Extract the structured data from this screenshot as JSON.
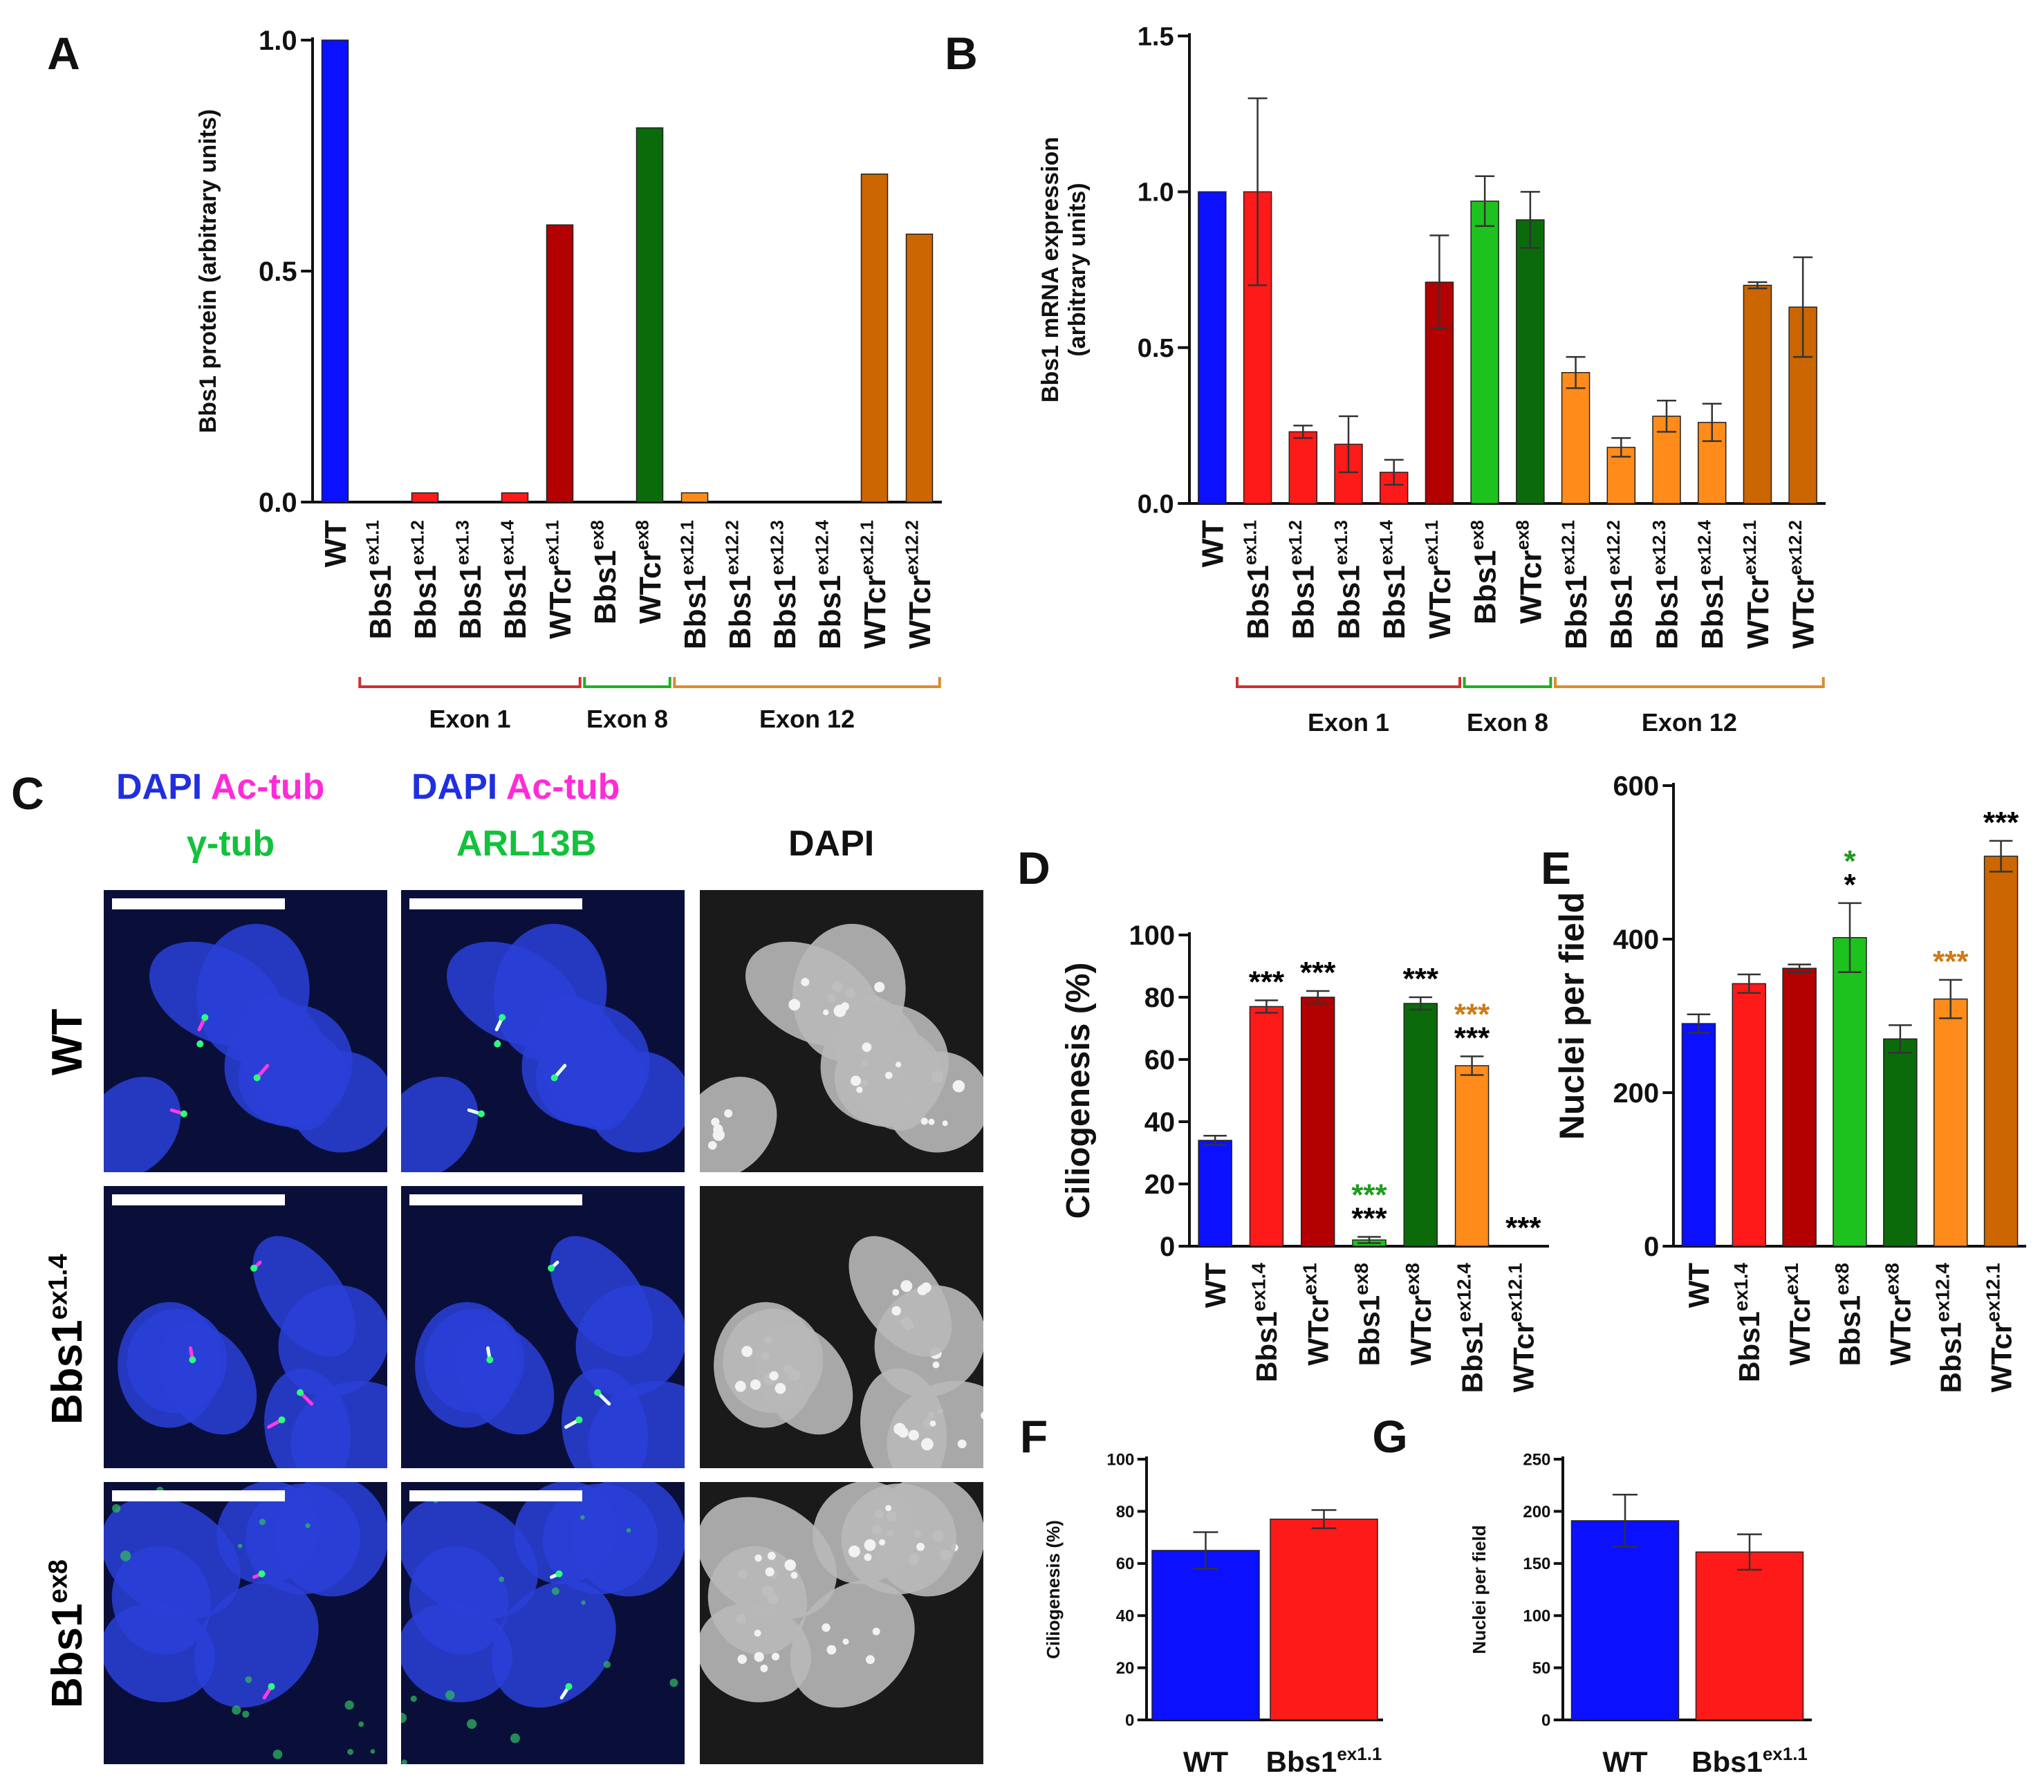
{
  "panel_letters": {
    "a": "A",
    "b": "B",
    "c": "C",
    "d": "D",
    "e": "E",
    "f": "F",
    "g": "G"
  },
  "colors": {
    "blue": "#0b10ff",
    "red": "#ff1a1a",
    "dark_red": "#b30000",
    "green": "#1ec21e",
    "dark_green": "#0b6b0b",
    "orange": "#ff8c1a",
    "dark_orange": "#cc6600",
    "star_black": "#000000",
    "star_green": "#1e9c1e",
    "star_orange": "#cc7a1a"
  },
  "chart_data": [
    {
      "id": "A",
      "type": "bar",
      "ylabel": "Bbs1 protein (arbitrary units)",
      "ylim": [
        0,
        1.0
      ],
      "yticks": [
        "0.0",
        "0.5",
        "1.0"
      ],
      "categories": [
        {
          "base": "WT",
          "sup": ""
        },
        {
          "base": "Bbs1",
          "sup": "ex1.1"
        },
        {
          "base": "Bbs1",
          "sup": "ex1.2"
        },
        {
          "base": "Bbs1",
          "sup": "ex1.3"
        },
        {
          "base": "Bbs1",
          "sup": "ex1.4"
        },
        {
          "base": "WTcr",
          "sup": "ex1.1"
        },
        {
          "base": "Bbs1",
          "sup": "ex8"
        },
        {
          "base": "WTcr",
          "sup": "ex8"
        },
        {
          "base": "Bbs1",
          "sup": "ex12.1"
        },
        {
          "base": "Bbs1",
          "sup": "ex12.2"
        },
        {
          "base": "Bbs1",
          "sup": "ex12.3"
        },
        {
          "base": "Bbs1",
          "sup": "ex12.4"
        },
        {
          "base": "WTcr",
          "sup": "ex12.1"
        },
        {
          "base": "WTcr",
          "sup": "ex12.2"
        }
      ],
      "values": [
        1.0,
        0.0,
        0.02,
        0.0,
        0.02,
        0.6,
        0.0,
        0.81,
        0.02,
        0.0,
        0.0,
        0.0,
        0.71,
        0.58
      ],
      "colors": [
        "blue",
        "red",
        "red",
        "red",
        "red",
        "dark_red",
        "green",
        "dark_green",
        "orange",
        "orange",
        "orange",
        "orange",
        "dark_orange",
        "dark_orange"
      ],
      "groups": [
        {
          "label": "Exon 1",
          "from": 1,
          "to": 5,
          "color": "#d03030"
        },
        {
          "label": "Exon 8",
          "from": 6,
          "to": 7,
          "color": "#20b020"
        },
        {
          "label": "Exon 12",
          "from": 8,
          "to": 13,
          "color": "#e08a2a"
        }
      ]
    },
    {
      "id": "B",
      "type": "bar",
      "ylabel": [
        "Bbs1 mRNA expression",
        "(arbitrary units)"
      ],
      "ylim": [
        0,
        1.5
      ],
      "yticks": [
        "0.0",
        "0.5",
        "1.0",
        "1.5"
      ],
      "categories": [
        {
          "base": "WT",
          "sup": ""
        },
        {
          "base": "Bbs1",
          "sup": "ex1.1"
        },
        {
          "base": "Bbs1",
          "sup": "ex1.2"
        },
        {
          "base": "Bbs1",
          "sup": "ex1.3"
        },
        {
          "base": "Bbs1",
          "sup": "ex1.4"
        },
        {
          "base": "WTcr",
          "sup": "ex1.1"
        },
        {
          "base": "Bbs1",
          "sup": "ex8"
        },
        {
          "base": "WTcr",
          "sup": "ex8"
        },
        {
          "base": "Bbs1",
          "sup": "ex12.1"
        },
        {
          "base": "Bbs1",
          "sup": "ex12.2"
        },
        {
          "base": "Bbs1",
          "sup": "ex12.3"
        },
        {
          "base": "Bbs1",
          "sup": "ex12.4"
        },
        {
          "base": "WTcr",
          "sup": "ex12.1"
        },
        {
          "base": "WTcr",
          "sup": "ex12.2"
        }
      ],
      "values": [
        1.0,
        1.0,
        0.23,
        0.19,
        0.1,
        0.71,
        0.97,
        0.91,
        0.42,
        0.18,
        0.28,
        0.26,
        0.7,
        0.63
      ],
      "errors": [
        0,
        0.3,
        0.02,
        0.09,
        0.04,
        0.15,
        0.08,
        0.09,
        0.05,
        0.03,
        0.05,
        0.06,
        0.01,
        0.16
      ],
      "colors": [
        "blue",
        "red",
        "red",
        "red",
        "red",
        "dark_red",
        "green",
        "dark_green",
        "orange",
        "orange",
        "orange",
        "orange",
        "dark_orange",
        "dark_orange"
      ],
      "groups": [
        {
          "label": "Exon 1",
          "from": 1,
          "to": 5,
          "color": "#d03030"
        },
        {
          "label": "Exon 8",
          "from": 6,
          "to": 7,
          "color": "#20b020"
        },
        {
          "label": "Exon 12",
          "from": 8,
          "to": 13,
          "color": "#e08a2a"
        }
      ]
    },
    {
      "id": "D",
      "type": "bar",
      "ylabel": "Ciliogenesis (%)",
      "ylim": [
        0,
        100
      ],
      "yticks": [
        "0",
        "20",
        "40",
        "60",
        "80",
        "100"
      ],
      "categories": [
        {
          "base": "WT",
          "sup": ""
        },
        {
          "base": "Bbs1",
          "sup": "ex1.4"
        },
        {
          "base": "WTcr",
          "sup": "ex1"
        },
        {
          "base": "Bbs1",
          "sup": "ex8"
        },
        {
          "base": "WTcr",
          "sup": "ex8"
        },
        {
          "base": "Bbs1",
          "sup": "ex12.4"
        },
        {
          "base": "WTcr",
          "sup": "ex12.1"
        }
      ],
      "values": [
        34,
        77,
        80,
        2,
        78,
        58,
        0
      ],
      "errors": [
        1.5,
        2,
        2,
        1,
        2,
        3,
        0
      ],
      "colors": [
        "blue",
        "red",
        "dark_red",
        "green",
        "dark_green",
        "orange",
        "dark_orange"
      ],
      "significance": [
        [],
        [
          {
            "text": "***",
            "color": "star_black"
          }
        ],
        [
          {
            "text": "***",
            "color": "star_black"
          }
        ],
        [
          {
            "text": "***",
            "color": "star_green"
          },
          {
            "text": "***",
            "color": "star_black"
          }
        ],
        [
          {
            "text": "***",
            "color": "star_black"
          }
        ],
        [
          {
            "text": "***",
            "color": "star_orange"
          },
          {
            "text": "***",
            "color": "star_black"
          }
        ],
        [
          {
            "text": "***",
            "color": "star_black"
          }
        ]
      ]
    },
    {
      "id": "E",
      "type": "bar",
      "ylabel": "Nuclei per field",
      "ylim": [
        0,
        600
      ],
      "yticks": [
        "0",
        "200",
        "400",
        "600"
      ],
      "categories": [
        {
          "base": "WT",
          "sup": ""
        },
        {
          "base": "Bbs1",
          "sup": "ex1.4"
        },
        {
          "base": "WTcr",
          "sup": "ex1"
        },
        {
          "base": "Bbs1",
          "sup": "ex8"
        },
        {
          "base": "WTcr",
          "sup": "ex8"
        },
        {
          "base": "Bbs1",
          "sup": "ex12.4"
        },
        {
          "base": "WTcr",
          "sup": "ex12.1"
        }
      ],
      "values": [
        290,
        342,
        362,
        402,
        270,
        322,
        508
      ],
      "errors": [
        12,
        12,
        5,
        45,
        18,
        25,
        20
      ],
      "colors": [
        "blue",
        "red",
        "dark_red",
        "green",
        "dark_green",
        "orange",
        "dark_orange"
      ],
      "significance": [
        [],
        [],
        [],
        [
          {
            "text": "*",
            "color": "star_green"
          },
          {
            "text": "*",
            "color": "star_black"
          }
        ],
        [],
        [
          {
            "text": "***",
            "color": "star_orange"
          }
        ],
        [
          {
            "text": "***",
            "color": "star_black"
          }
        ]
      ]
    },
    {
      "id": "F",
      "type": "bar",
      "ylabel": "Ciliogenesis (%)",
      "ylim": [
        0,
        100
      ],
      "yticks": [
        "0",
        "20",
        "40",
        "60",
        "80",
        "100"
      ],
      "categories": [
        {
          "base": "WT",
          "sup": ""
        },
        {
          "base": "Bbs1",
          "sup": "ex1.1"
        }
      ],
      "values": [
        65,
        77
      ],
      "errors": [
        7,
        3.5
      ],
      "colors": [
        "blue",
        "red"
      ]
    },
    {
      "id": "G",
      "type": "bar",
      "ylabel": "Nuclei per field",
      "ylim": [
        0,
        250
      ],
      "yticks": [
        "0",
        "50",
        "100",
        "150",
        "200",
        "250"
      ],
      "categories": [
        {
          "base": "WT",
          "sup": ""
        },
        {
          "base": "Bbs1",
          "sup": "ex1.1"
        }
      ],
      "values": [
        191,
        161
      ],
      "errors": [
        25,
        17
      ],
      "colors": [
        "blue",
        "red"
      ]
    }
  ],
  "panel_c": {
    "header1": {
      "line1_a": "DAPI",
      "line1_b": "Ac-tub",
      "line2": "γ-tub"
    },
    "header2": {
      "line1_a": "DAPI",
      "line1_b": "Ac-tub",
      "line2": "ARL13B"
    },
    "header3": "DAPI",
    "rows": [
      {
        "base": "WT",
        "sup": ""
      },
      {
        "base": "Bbs1",
        "sup": "ex1.4"
      },
      {
        "base": "Bbs1",
        "sup": "ex8"
      }
    ]
  }
}
